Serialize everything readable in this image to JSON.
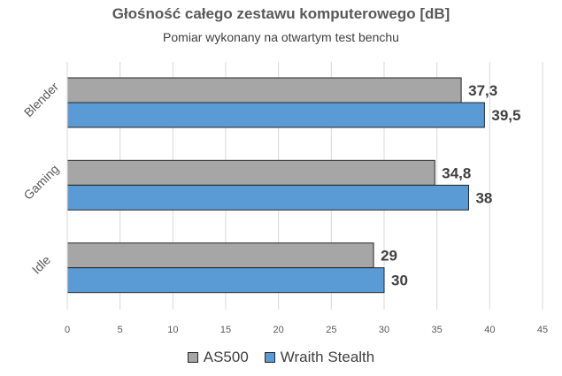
{
  "chart_data": {
    "type": "bar",
    "orientation": "horizontal",
    "title": "Głośność całego zestawu komputerowego [dB]",
    "subtitle": "Pomiar wykonany na otwartym test benchu",
    "categories": [
      "Blender",
      "Gaming",
      "Idle"
    ],
    "series": [
      {
        "name": "AS500",
        "values": [
          37.3,
          34.8,
          29
        ],
        "labels": [
          "37,3",
          "34,8",
          "29"
        ],
        "color": "#a6a6a6"
      },
      {
        "name": "Wraith Stealth",
        "values": [
          39.5,
          38,
          30
        ],
        "labels": [
          "39,5",
          "38",
          "30"
        ],
        "color": "#5b9bd5"
      }
    ],
    "xlim": [
      0,
      45
    ],
    "xticks": [
      "0",
      "5",
      "10",
      "15",
      "20",
      "25",
      "30",
      "35",
      "40",
      "45"
    ],
    "grid": true,
    "legend_position": "bottom",
    "colors": {
      "axis_text": "#595959",
      "grid": "#d9d9d9",
      "bar_border": "#262626",
      "label": "#404040"
    }
  }
}
